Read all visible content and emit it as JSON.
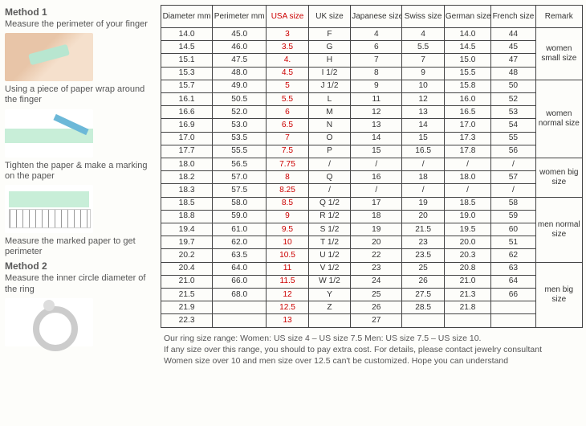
{
  "left": {
    "method1_title": "Method 1",
    "method1_sub": "Measure the perimeter of your finger",
    "cap1": "Using a piece of paper wrap around the finger",
    "cap2": "Tighten the paper & make a marking on the paper",
    "cap3": "Measure the marked paper to get perimeter",
    "method2_title": "Method 2",
    "method2_sub": "Measure the inner circle diameter of the ring"
  },
  "headers": {
    "diameter": "Diameter mm",
    "perimeter": "Perimeter mm",
    "usa": "USA size",
    "uk": "UK size",
    "jp": "Japanese size",
    "swiss": "Swiss size",
    "german": "German size",
    "french": "French size",
    "remark": "Remark"
  },
  "rows": [
    {
      "d": "14.0",
      "p": "45.0",
      "us": "3",
      "uk": "F",
      "jp": "4",
      "sw": "4",
      "ge": "14.0",
      "fr": "44"
    },
    {
      "d": "14.5",
      "p": "46.0",
      "us": "3.5",
      "uk": "G",
      "jp": "6",
      "sw": "5.5",
      "ge": "14.5",
      "fr": "45"
    },
    {
      "d": "15.1",
      "p": "47.5",
      "us": "4.",
      "uk": "H",
      "jp": "7",
      "sw": "7",
      "ge": "15.0",
      "fr": "47"
    },
    {
      "d": "15.3",
      "p": "48.0",
      "us": "4.5",
      "uk": "I 1/2",
      "jp": "8",
      "sw": "9",
      "ge": "15.5",
      "fr": "48"
    },
    {
      "d": "15.7",
      "p": "49.0",
      "us": "5",
      "uk": "J 1/2",
      "jp": "9",
      "sw": "10",
      "ge": "15.8",
      "fr": "50"
    },
    {
      "d": "16.1",
      "p": "50.5",
      "us": "5.5",
      "uk": "L",
      "jp": "11",
      "sw": "12",
      "ge": "16.0",
      "fr": "52"
    },
    {
      "d": "16.6",
      "p": "52.0",
      "us": "6",
      "uk": "M",
      "jp": "12",
      "sw": "13",
      "ge": "16.5",
      "fr": "53"
    },
    {
      "d": "16.9",
      "p": "53.0",
      "us": "6.5",
      "uk": "N",
      "jp": "13",
      "sw": "14",
      "ge": "17.0",
      "fr": "54"
    },
    {
      "d": "17.0",
      "p": "53.5",
      "us": "7",
      "uk": "O",
      "jp": "14",
      "sw": "15",
      "ge": "17.3",
      "fr": "55"
    },
    {
      "d": "17.7",
      "p": "55.5",
      "us": "7.5",
      "uk": "P",
      "jp": "15",
      "sw": "16.5",
      "ge": "17.8",
      "fr": "56"
    },
    {
      "d": "18.0",
      "p": "56.5",
      "us": "7.75",
      "uk": "/",
      "jp": "/",
      "sw": "/",
      "ge": "/",
      "fr": "/"
    },
    {
      "d": "18.2",
      "p": "57.0",
      "us": "8",
      "uk": "Q",
      "jp": "16",
      "sw": "18",
      "ge": "18.0",
      "fr": "57"
    },
    {
      "d": "18.3",
      "p": "57.5",
      "us": "8.25",
      "uk": "/",
      "jp": "/",
      "sw": "/",
      "ge": "/",
      "fr": "/"
    },
    {
      "d": "18.5",
      "p": "58.0",
      "us": "8.5",
      "uk": "Q 1/2",
      "jp": "17",
      "sw": "19",
      "ge": "18.5",
      "fr": "58"
    },
    {
      "d": "18.8",
      "p": "59.0",
      "us": "9",
      "uk": "R 1/2",
      "jp": "18",
      "sw": "20",
      "ge": "19.0",
      "fr": "59"
    },
    {
      "d": "19.4",
      "p": "61.0",
      "us": "9.5",
      "uk": "S 1/2",
      "jp": "19",
      "sw": "21.5",
      "ge": "19.5",
      "fr": "60"
    },
    {
      "d": "19.7",
      "p": "62.0",
      "us": "10",
      "uk": "T 1/2",
      "jp": "20",
      "sw": "23",
      "ge": "20.0",
      "fr": "51"
    },
    {
      "d": "20.2",
      "p": "63.5",
      "us": "10.5",
      "uk": "U 1/2",
      "jp": "22",
      "sw": "23.5",
      "ge": "20.3",
      "fr": "62"
    },
    {
      "d": "20.4",
      "p": "64.0",
      "us": "11",
      "uk": "V 1/2",
      "jp": "23",
      "sw": "25",
      "ge": "20.8",
      "fr": "63"
    },
    {
      "d": "21.0",
      "p": "66.0",
      "us": "11.5",
      "uk": "W 1/2",
      "jp": "24",
      "sw": "26",
      "ge": "21.0",
      "fr": "64"
    },
    {
      "d": "21.5",
      "p": "68.0",
      "us": "12",
      "uk": "Y",
      "jp": "25",
      "sw": "27.5",
      "ge": "21.3",
      "fr": "66"
    },
    {
      "d": "21.9",
      "p": "",
      "us": "12.5",
      "uk": "Z",
      "jp": "26",
      "sw": "28.5",
      "ge": "21.8",
      "fr": ""
    },
    {
      "d": "22.3",
      "p": "",
      "us": "13",
      "uk": "",
      "jp": "27",
      "sw": "",
      "ge": "",
      "fr": ""
    }
  ],
  "remarks": [
    {
      "span": 4,
      "text": "women small size"
    },
    {
      "span": 6,
      "text": "women normal size"
    },
    {
      "span": 3,
      "text": "women big size"
    },
    {
      "span": 5,
      "text": "men normal size"
    },
    {
      "span": 5,
      "text": "men big size"
    }
  ],
  "footer": {
    "l1": "Our ring size range: Women: US size 4 – US size 7.5  Men: US size 7.5 – US size 10.",
    "l2": "If any size over this range, you should to pay extra cost. For details, please contact jewelry consultant",
    "l3": "Women size over 10 and men size over 12.5 can't be customized. Hope you can understand"
  }
}
